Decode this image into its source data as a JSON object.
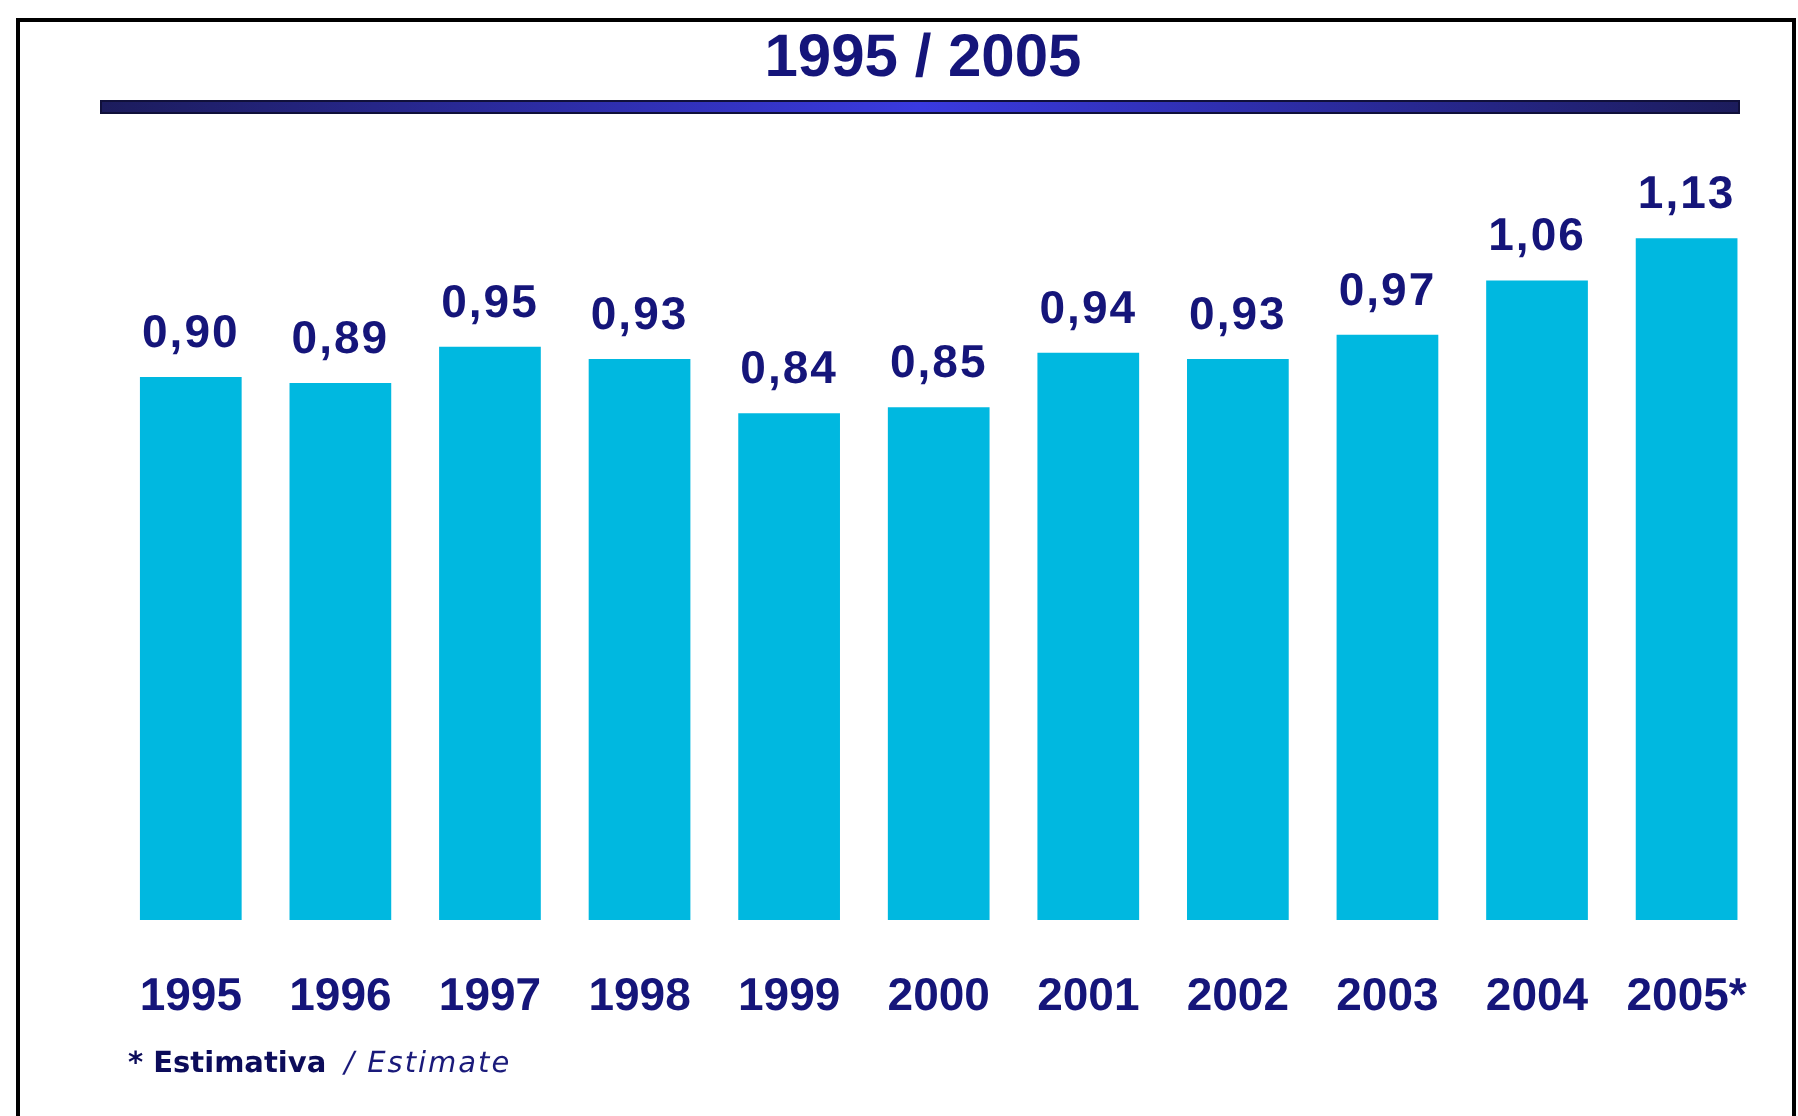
{
  "chart_data": {
    "type": "bar",
    "title": "1995 / 2005",
    "categories": [
      "1995",
      "1996",
      "1997",
      "1998",
      "1999",
      "2000",
      "2001",
      "2002",
      "2003",
      "2004",
      "2005*"
    ],
    "values": [
      0.9,
      0.89,
      0.95,
      0.93,
      0.84,
      0.85,
      0.94,
      0.93,
      0.97,
      1.06,
      1.13
    ],
    "value_labels": [
      "0,90",
      "0,89",
      "0,95",
      "0,93",
      "0,84",
      "0,85",
      "0,94",
      "0,93",
      "0,97",
      "1,06",
      "1,13"
    ],
    "color": "#00b8e0",
    "tick_labels": "x",
    "annotations": [
      "* Estimativa",
      "/ Estimate"
    ]
  }
}
